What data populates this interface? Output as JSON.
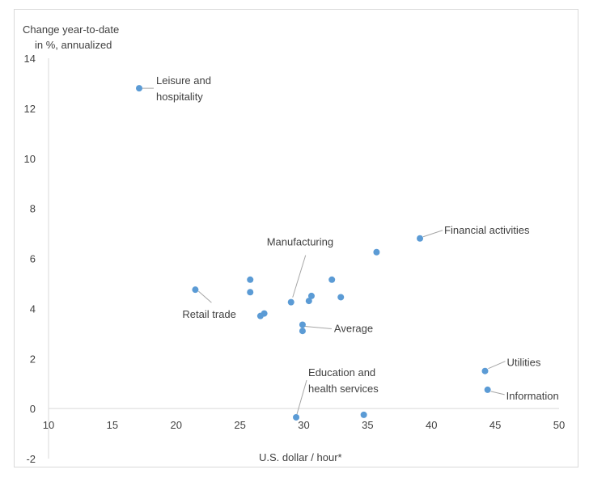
{
  "chart_data": {
    "type": "scatter",
    "ylabel_lines": [
      "Change year-to-date",
      "in %, annualized"
    ],
    "xlabel": "U.S. dollar / hour*",
    "xlim": [
      10,
      50
    ],
    "ylim": [
      -2,
      14
    ],
    "x_ticks": [
      10,
      15,
      20,
      25,
      30,
      35,
      40,
      45,
      50
    ],
    "y_ticks": [
      -2,
      0,
      2,
      4,
      6,
      8,
      10,
      12,
      14
    ],
    "grid": false,
    "marker_color": "#5b9bd5",
    "points": [
      {
        "x": 17.1,
        "y": 12.8
      },
      {
        "x": 21.5,
        "y": 4.75
      },
      {
        "x": 25.8,
        "y": 5.15
      },
      {
        "x": 25.8,
        "y": 4.65
      },
      {
        "x": 26.6,
        "y": 3.7
      },
      {
        "x": 26.9,
        "y": 3.8
      },
      {
        "x": 29.0,
        "y": 4.25
      },
      {
        "x": 29.4,
        "y": -0.35
      },
      {
        "x": 29.9,
        "y": 3.35
      },
      {
        "x": 29.9,
        "y": 3.1
      },
      {
        "x": 30.4,
        "y": 4.3
      },
      {
        "x": 30.6,
        "y": 4.5
      },
      {
        "x": 32.2,
        "y": 5.15
      },
      {
        "x": 32.9,
        "y": 4.45
      },
      {
        "x": 34.7,
        "y": -0.25
      },
      {
        "x": 35.7,
        "y": 6.25
      },
      {
        "x": 39.1,
        "y": 6.8
      },
      {
        "x": 44.2,
        "y": 1.5
      },
      {
        "x": 44.4,
        "y": 0.75
      }
    ],
    "annotations": [
      {
        "lines": [
          "Leisure and",
          "hospitality"
        ],
        "x": 17.1,
        "y": 12.8,
        "name": "annotation-leisure-hospitality"
      },
      {
        "lines": [
          "Retail trade"
        ],
        "x": 21.5,
        "y": 4.75,
        "name": "annotation-retail-trade"
      },
      {
        "lines": [
          "Manufacturing"
        ],
        "x": 29.0,
        "y": 4.25,
        "name": "annotation-manufacturing"
      },
      {
        "lines": [
          "Average"
        ],
        "x": 29.9,
        "y": 3.35,
        "name": "annotation-average"
      },
      {
        "lines": [
          "Education and",
          "health services"
        ],
        "x": 29.4,
        "y": -0.35,
        "name": "annotation-education-health"
      },
      {
        "lines": [
          "Financial activities"
        ],
        "x": 39.1,
        "y": 6.8,
        "name": "annotation-financial-activities"
      },
      {
        "lines": [
          "Utilities"
        ],
        "x": 44.2,
        "y": 1.5,
        "name": "annotation-utilities"
      },
      {
        "lines": [
          "Information"
        ],
        "x": 44.4,
        "y": 0.75,
        "name": "annotation-information"
      }
    ]
  }
}
